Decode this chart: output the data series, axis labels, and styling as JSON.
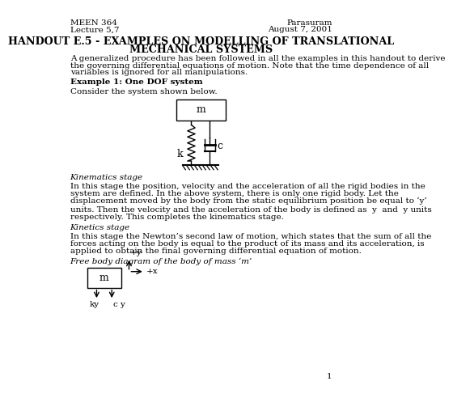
{
  "header_left": [
    "MEEN 364",
    "Lecture 5,7"
  ],
  "header_right": [
    "Parasuram",
    "August 7, 2001"
  ],
  "title_line1": "HANDOUT E.5 - EXAMPLES ON MODELLING OF TRANSLATIONAL",
  "title_line2": "MECHANICAL SYSTEMS",
  "intro_lines": [
    "A generalized procedure has been followed in all the examples in this handout to derive",
    "the governing differential equations of motion. Note that the time dependence of all",
    "variables is ignored for all manipulations."
  ],
  "example1_heading": "Example 1: One DOF system",
  "example1_intro": "Consider the system shown below.",
  "kinematics_heading": "Kinematics stage",
  "kinematics_lines1": [
    "In this stage the position, velocity and the acceleration of all the rigid bodies in the",
    "system are defined. In the above system, there is only one rigid body. Let the",
    "displacement moved by the body from the static equilibrium position be equal to ‘y’"
  ],
  "kinematics_line2a": "units. Then the velocity and the acceleration of the body is defined as  y  and  y units",
  "kinematics_line2b": "respectively. This completes the kinematics stage.",
  "kinetics_heading": "Kinetics stage",
  "kinetics_lines": [
    "In this stage the Newton’s second law of motion, which states that the sum of all the",
    "forces acting on the body is equal to the product of its mass and its acceleration, is",
    "applied to obtain the final governing differential equation of motion."
  ],
  "fbd_heading": "Free body diagram of the body of mass ‘m’",
  "page_number": "1",
  "bg_color": "#ffffff",
  "text_color": "#000000"
}
